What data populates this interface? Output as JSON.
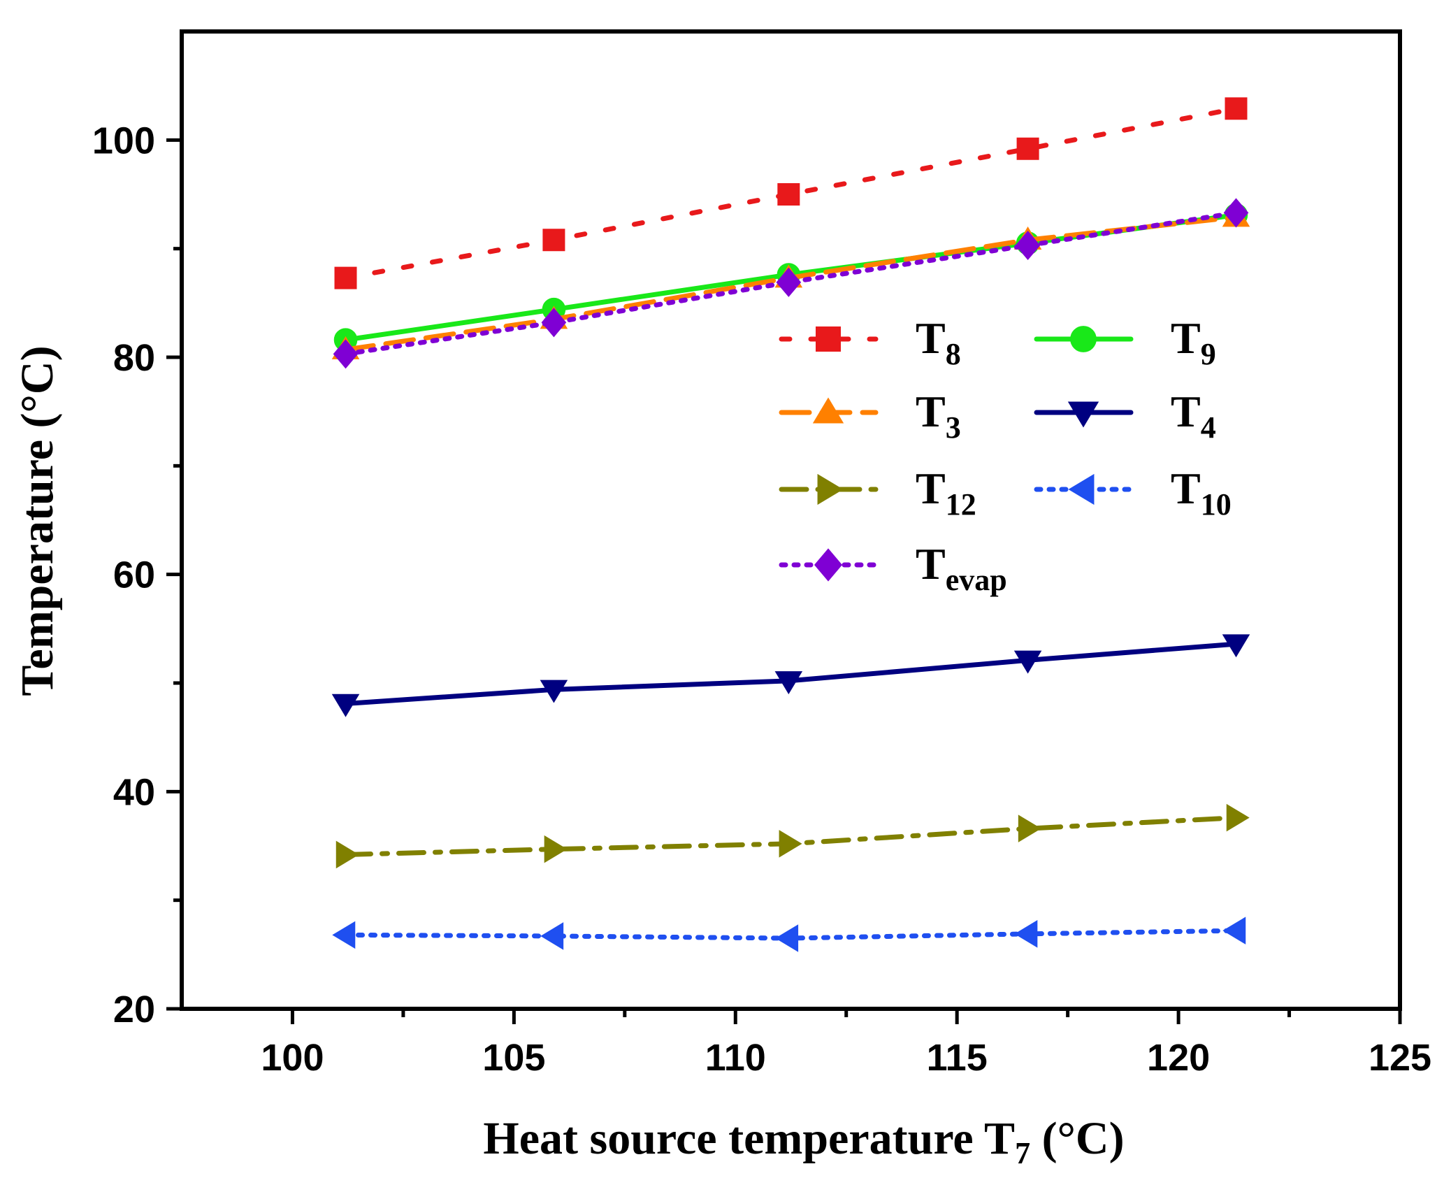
{
  "chart_data": {
    "type": "line",
    "title": "",
    "xlabel": "Heat source temperature T",
    "xlabel_sub": "7",
    "xlabel_unit": " (°C)",
    "ylabel": "Temperature (°C)",
    "xlim": [
      97.5,
      125
    ],
    "ylim": [
      20,
      110
    ],
    "x_ticks": [
      100,
      105,
      110,
      115,
      120,
      125
    ],
    "y_ticks": [
      20,
      40,
      60,
      80,
      100
    ],
    "x_tick_labels": [
      "100",
      "105",
      "110",
      "115",
      "120",
      "125"
    ],
    "y_tick_labels": [
      "20",
      "40",
      "60",
      "80",
      "100"
    ],
    "x": [
      101.2,
      105.9,
      111.2,
      116.6,
      121.3
    ],
    "legend_position": "center-right",
    "series": [
      {
        "name": "T",
        "sub": "8",
        "color": "#e8191b",
        "dash": "dot-wide",
        "marker": "square",
        "values": [
          87.3,
          90.8,
          95.0,
          99.2,
          102.9
        ]
      },
      {
        "name": "T",
        "sub": "9",
        "color": "#19e819",
        "dash": "solid",
        "marker": "circle",
        "values": [
          81.6,
          84.4,
          87.6,
          90.5,
          93.1
        ]
      },
      {
        "name": "T",
        "sub": "3",
        "color": "#ff8000",
        "dash": "dash",
        "marker": "triangle-up",
        "values": [
          80.7,
          83.5,
          87.3,
          90.8,
          92.9
        ]
      },
      {
        "name": "T",
        "sub": "4",
        "color": "#000080",
        "dash": "solid",
        "marker": "triangle-down",
        "values": [
          48.1,
          49.4,
          50.2,
          52.1,
          53.6
        ]
      },
      {
        "name": "T",
        "sub": "12",
        "color": "#808000",
        "dash": "dashdot",
        "marker": "triangle-right",
        "values": [
          34.2,
          34.7,
          35.2,
          36.6,
          37.6
        ]
      },
      {
        "name": "T",
        "sub": "10",
        "color": "#1f4ff0",
        "dash": "dot",
        "marker": "triangle-left",
        "values": [
          26.8,
          26.7,
          26.5,
          26.9,
          27.2
        ]
      },
      {
        "name": "T",
        "sub": "evap",
        "color": "#7f00d4",
        "dash": "dot",
        "marker": "diamond",
        "values": [
          80.3,
          83.2,
          86.9,
          90.3,
          93.3
        ]
      }
    ]
  }
}
